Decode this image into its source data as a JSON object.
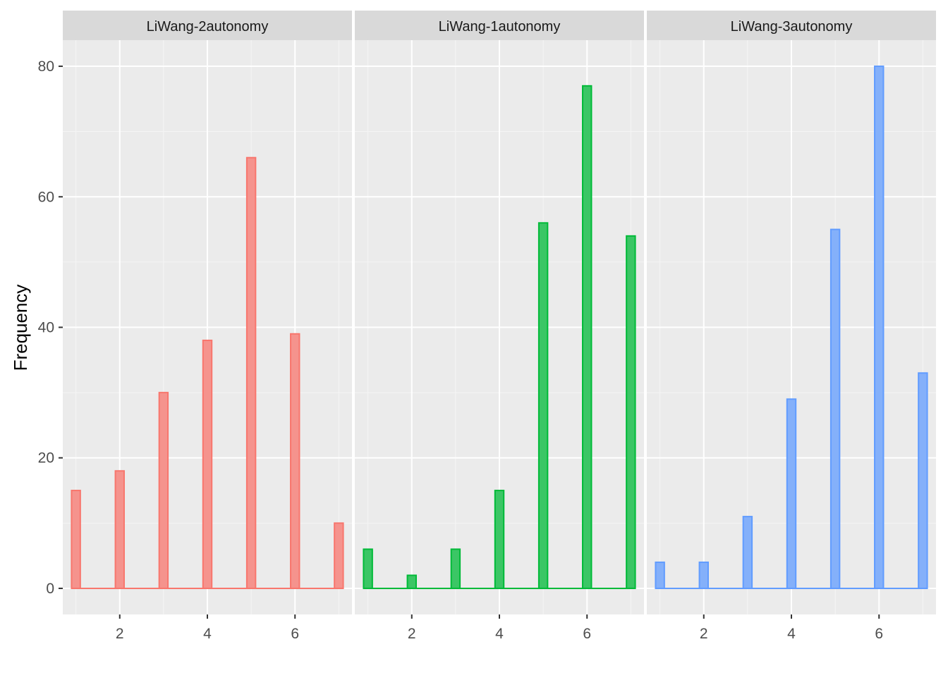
{
  "chart_data": {
    "type": "bar",
    "ylabel": "Frequency",
    "xlabel": "",
    "ylim": [
      0,
      80
    ],
    "y_ticks": [
      0,
      20,
      40,
      60,
      80
    ],
    "x_ticks": [
      2,
      4,
      6
    ],
    "grid": "on",
    "colors": [
      "#F8766D",
      "#00BA38",
      "#619CFF"
    ],
    "panels": [
      {
        "strip": "LiWang-2autonomy",
        "color": "#F8766D",
        "x": [
          1,
          2,
          3,
          4,
          5,
          6,
          7
        ],
        "values": [
          15,
          18,
          30,
          38,
          66,
          39,
          10
        ]
      },
      {
        "strip": "LiWang-1autonomy",
        "color": "#00BA38",
        "x": [
          1,
          2,
          3,
          4,
          5,
          6,
          7
        ],
        "values": [
          6,
          2,
          6,
          15,
          56,
          77,
          54
        ]
      },
      {
        "strip": "LiWang-3autonomy",
        "color": "#619CFF",
        "x": [
          1,
          2,
          3,
          4,
          5,
          6,
          7
        ],
        "values": [
          4,
          4,
          11,
          29,
          55,
          80,
          33
        ]
      }
    ]
  }
}
